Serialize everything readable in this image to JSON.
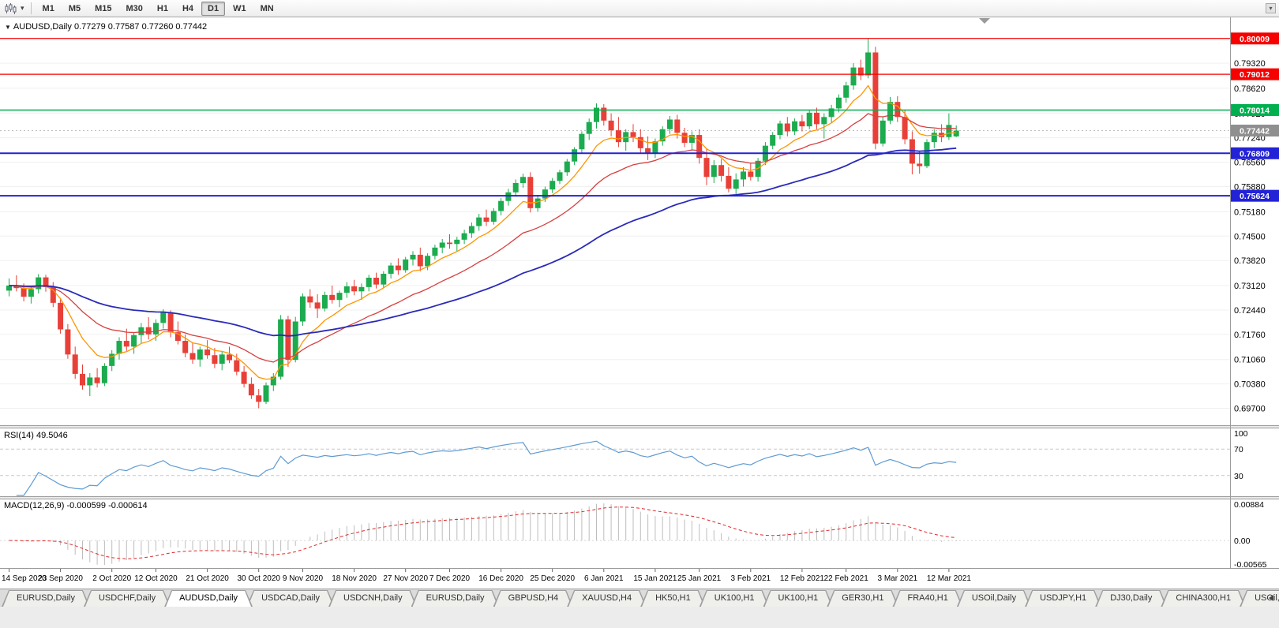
{
  "toolbar": {
    "timeframes": [
      "M1",
      "M5",
      "M15",
      "M30",
      "H1",
      "H4",
      "D1",
      "W1",
      "MN"
    ],
    "active_timeframe": "D1"
  },
  "chart_title": {
    "symbol": "AUDUSD,Daily",
    "ohlc": "0.77279 0.77587 0.77260 0.77442"
  },
  "chart_data": {
    "type": "candlestick",
    "symbol": "AUDUSD",
    "period": "Daily",
    "price_axis_labels": [
      "0.79320",
      "0.78620",
      "0.77920",
      "0.77240",
      "0.76560",
      "0.75880",
      "0.75180",
      "0.74500",
      "0.73820",
      "0.73120",
      "0.72440",
      "0.71760",
      "0.71060",
      "0.70380",
      "0.69700"
    ],
    "x_labels": [
      [
        0,
        "14 Sep 2020"
      ],
      [
        7,
        "23 Sep 2020"
      ],
      [
        14,
        "2 Oct 2020"
      ],
      [
        20,
        "12 Oct 2020"
      ],
      [
        27,
        "21 Oct 2020"
      ],
      [
        34,
        "30 Oct 2020"
      ],
      [
        40,
        "9 Nov 2020"
      ],
      [
        47,
        "18 Nov 2020"
      ],
      [
        54,
        "27 Nov 2020"
      ],
      [
        60,
        "7 Dec 2020"
      ],
      [
        67,
        "16 Dec 2020"
      ],
      [
        74,
        "25 Dec 2020"
      ],
      [
        81,
        "6 Jan 2021"
      ],
      [
        88,
        "15 Jan 2021"
      ],
      [
        94,
        "25 Jan 2021"
      ],
      [
        101,
        "3 Feb 2021"
      ],
      [
        108,
        "12 Feb 2021"
      ],
      [
        114,
        "22 Feb 2021"
      ],
      [
        121,
        "3 Mar 2021"
      ],
      [
        128,
        "12 Mar 2021"
      ]
    ],
    "hlines": [
      {
        "price": 0.80009,
        "label": "0.80009",
        "color": "#f60000",
        "width": 1.3
      },
      {
        "price": 0.79012,
        "label": "0.79012",
        "color": "#f60000",
        "width": 1.3
      },
      {
        "price": 0.78014,
        "label": "0.78014",
        "color": "#00b050",
        "width": 1.6
      },
      {
        "price": 0.76809,
        "label": "0.76809",
        "color": "#2222d6",
        "width": 2
      },
      {
        "price": 0.75624,
        "label": "0.75624",
        "color": "#2222d6",
        "width": 2
      }
    ],
    "current_price": {
      "value": 0.77442,
      "label": "0.77442",
      "color": "#8f8f8f"
    },
    "colors": {
      "bull": "#1cab4f",
      "bear": "#e84038",
      "ma_fast": "#ff9500",
      "ma_mid": "#d74040",
      "ma_slow": "#2a2ab8",
      "rsi": "#5e9bd3",
      "macd_hist": "#bdbdbd",
      "macd_signal": "#e02828"
    },
    "candles": [
      [
        0.7298,
        0.7332,
        0.7282,
        0.7312
      ],
      [
        0.7312,
        0.7341,
        0.7296,
        0.7305
      ],
      [
        0.7305,
        0.7318,
        0.7268,
        0.7281
      ],
      [
        0.7281,
        0.7312,
        0.7262,
        0.7302
      ],
      [
        0.7302,
        0.7344,
        0.729,
        0.7335
      ],
      [
        0.7335,
        0.7342,
        0.7295,
        0.7308
      ],
      [
        0.7308,
        0.7322,
        0.7252,
        0.7264
      ],
      [
        0.7264,
        0.7278,
        0.7178,
        0.719
      ],
      [
        0.719,
        0.7205,
        0.7108,
        0.712
      ],
      [
        0.712,
        0.7142,
        0.7052,
        0.7066
      ],
      [
        0.7066,
        0.7092,
        0.7022,
        0.7034
      ],
      [
        0.7034,
        0.7068,
        0.7004,
        0.7056
      ],
      [
        0.7056,
        0.7082,
        0.7028,
        0.704
      ],
      [
        0.704,
        0.7096,
        0.7032,
        0.7088
      ],
      [
        0.7088,
        0.7132,
        0.7074,
        0.7122
      ],
      [
        0.7122,
        0.7168,
        0.7106,
        0.7158
      ],
      [
        0.7158,
        0.7192,
        0.713,
        0.7142
      ],
      [
        0.7142,
        0.7182,
        0.7122,
        0.7174
      ],
      [
        0.7174,
        0.7208,
        0.7152,
        0.7196
      ],
      [
        0.7196,
        0.7224,
        0.7162,
        0.7176
      ],
      [
        0.7176,
        0.7218,
        0.7158,
        0.7208
      ],
      [
        0.7208,
        0.7246,
        0.7192,
        0.7238
      ],
      [
        0.7238,
        0.7243,
        0.7168,
        0.7182
      ],
      [
        0.7182,
        0.7212,
        0.7148,
        0.7158
      ],
      [
        0.7158,
        0.7176,
        0.7112,
        0.7124
      ],
      [
        0.7124,
        0.7152,
        0.7094,
        0.7106
      ],
      [
        0.7106,
        0.7142,
        0.7086,
        0.7134
      ],
      [
        0.7134,
        0.716,
        0.7108,
        0.7118
      ],
      [
        0.7118,
        0.7138,
        0.7082,
        0.7094
      ],
      [
        0.7094,
        0.7128,
        0.7076,
        0.712
      ],
      [
        0.712,
        0.7142,
        0.7096,
        0.7104
      ],
      [
        0.7104,
        0.7122,
        0.7062,
        0.7072
      ],
      [
        0.7072,
        0.7088,
        0.7028,
        0.7038
      ],
      [
        0.7038,
        0.7056,
        0.6996,
        0.7006
      ],
      [
        0.7006,
        0.7024,
        0.697,
        0.6988
      ],
      [
        0.6988,
        0.7042,
        0.6982,
        0.7034
      ],
      [
        0.7034,
        0.7068,
        0.7018,
        0.7058
      ],
      [
        0.7058,
        0.723,
        0.705,
        0.7218
      ],
      [
        0.7218,
        0.7228,
        0.7085,
        0.7105
      ],
      [
        0.7105,
        0.7225,
        0.7098,
        0.7212
      ],
      [
        0.7212,
        0.729,
        0.72,
        0.7282
      ],
      [
        0.7282,
        0.7302,
        0.725,
        0.7265
      ],
      [
        0.7265,
        0.7288,
        0.7222,
        0.7248
      ],
      [
        0.7248,
        0.7295,
        0.724,
        0.7286
      ],
      [
        0.7286,
        0.7312,
        0.7262,
        0.7272
      ],
      [
        0.7272,
        0.7298,
        0.7252,
        0.7292
      ],
      [
        0.7292,
        0.7322,
        0.7278,
        0.731
      ],
      [
        0.731,
        0.7328,
        0.7285,
        0.7296
      ],
      [
        0.7296,
        0.7318,
        0.7272,
        0.7308
      ],
      [
        0.7308,
        0.7342,
        0.7296,
        0.7334
      ],
      [
        0.7334,
        0.7348,
        0.7304,
        0.7315
      ],
      [
        0.7315,
        0.7352,
        0.7306,
        0.7345
      ],
      [
        0.7345,
        0.7376,
        0.7332,
        0.7368
      ],
      [
        0.7368,
        0.7388,
        0.7342,
        0.7355
      ],
      [
        0.7355,
        0.7392,
        0.7348,
        0.7385
      ],
      [
        0.7385,
        0.7408,
        0.7368,
        0.7398
      ],
      [
        0.7398,
        0.7418,
        0.7352,
        0.7366
      ],
      [
        0.7366,
        0.7402,
        0.7355,
        0.7395
      ],
      [
        0.7395,
        0.7426,
        0.7385,
        0.7418
      ],
      [
        0.7418,
        0.7442,
        0.7402,
        0.7432
      ],
      [
        0.7432,
        0.7455,
        0.7415,
        0.7428
      ],
      [
        0.7428,
        0.7448,
        0.7406,
        0.744
      ],
      [
        0.744,
        0.7468,
        0.7428,
        0.7458
      ],
      [
        0.7458,
        0.7488,
        0.7445,
        0.7478
      ],
      [
        0.7478,
        0.7512,
        0.7465,
        0.7502
      ],
      [
        0.7502,
        0.7524,
        0.7478,
        0.749
      ],
      [
        0.749,
        0.7528,
        0.7482,
        0.752
      ],
      [
        0.752,
        0.7556,
        0.7508,
        0.7548
      ],
      [
        0.7548,
        0.7582,
        0.7535,
        0.7572
      ],
      [
        0.7572,
        0.7608,
        0.756,
        0.7598
      ],
      [
        0.7598,
        0.7624,
        0.7585,
        0.7615
      ],
      [
        0.7615,
        0.7628,
        0.7516,
        0.7528
      ],
      [
        0.7528,
        0.7565,
        0.7518,
        0.7555
      ],
      [
        0.7555,
        0.7588,
        0.7545,
        0.758
      ],
      [
        0.758,
        0.7612,
        0.757,
        0.7604
      ],
      [
        0.7604,
        0.7635,
        0.7595,
        0.7628
      ],
      [
        0.7628,
        0.7665,
        0.7618,
        0.7658
      ],
      [
        0.7658,
        0.7698,
        0.7648,
        0.7692
      ],
      [
        0.7692,
        0.7742,
        0.768,
        0.7735
      ],
      [
        0.7735,
        0.7778,
        0.7718,
        0.7768
      ],
      [
        0.7768,
        0.782,
        0.775,
        0.7808
      ],
      [
        0.7808,
        0.7818,
        0.7758,
        0.7772
      ],
      [
        0.7772,
        0.7792,
        0.7728,
        0.7745
      ],
      [
        0.7745,
        0.7782,
        0.7698,
        0.7712
      ],
      [
        0.7712,
        0.7748,
        0.7688,
        0.774
      ],
      [
        0.774,
        0.7762,
        0.7712,
        0.7726
      ],
      [
        0.7726,
        0.7748,
        0.7682,
        0.7695
      ],
      [
        0.7695,
        0.7728,
        0.7662,
        0.7682
      ],
      [
        0.7682,
        0.7722,
        0.7668,
        0.7714
      ],
      [
        0.7714,
        0.7756,
        0.7702,
        0.7748
      ],
      [
        0.7748,
        0.7785,
        0.7735,
        0.7775
      ],
      [
        0.7775,
        0.7788,
        0.7722,
        0.7738
      ],
      [
        0.7738,
        0.7752,
        0.7698,
        0.771
      ],
      [
        0.771,
        0.7742,
        0.7688,
        0.7732
      ],
      [
        0.7732,
        0.7748,
        0.7652,
        0.7668
      ],
      [
        0.7668,
        0.7695,
        0.7592,
        0.7615
      ],
      [
        0.7615,
        0.7662,
        0.7598,
        0.7648
      ],
      [
        0.7648,
        0.7665,
        0.7602,
        0.7618
      ],
      [
        0.7618,
        0.7642,
        0.7572,
        0.7582
      ],
      [
        0.7582,
        0.7625,
        0.7566,
        0.7608
      ],
      [
        0.7608,
        0.7642,
        0.7588,
        0.763
      ],
      [
        0.763,
        0.7652,
        0.7605,
        0.7615
      ],
      [
        0.7615,
        0.7668,
        0.7602,
        0.766
      ],
      [
        0.766,
        0.7712,
        0.7648,
        0.7702
      ],
      [
        0.7702,
        0.774,
        0.7692,
        0.7732
      ],
      [
        0.7732,
        0.7772,
        0.772,
        0.7764
      ],
      [
        0.7764,
        0.7782,
        0.7728,
        0.7742
      ],
      [
        0.7742,
        0.7778,
        0.7732,
        0.777
      ],
      [
        0.777,
        0.7788,
        0.7742,
        0.7756
      ],
      [
        0.7756,
        0.7802,
        0.7748,
        0.7794
      ],
      [
        0.7794,
        0.7808,
        0.7748,
        0.7762
      ],
      [
        0.7762,
        0.7792,
        0.7722,
        0.7782
      ],
      [
        0.7782,
        0.7816,
        0.7765,
        0.7806
      ],
      [
        0.7806,
        0.7845,
        0.7795,
        0.7836
      ],
      [
        0.7836,
        0.788,
        0.7822,
        0.787
      ],
      [
        0.787,
        0.7932,
        0.7858,
        0.792
      ],
      [
        0.792,
        0.7942,
        0.7885,
        0.7898
      ],
      [
        0.7898,
        0.8001,
        0.789,
        0.7962
      ],
      [
        0.7962,
        0.7978,
        0.7692,
        0.7708
      ],
      [
        0.7708,
        0.7782,
        0.77,
        0.7772
      ],
      [
        0.7772,
        0.7838,
        0.7762,
        0.7824
      ],
      [
        0.7824,
        0.784,
        0.7768,
        0.7782
      ],
      [
        0.7782,
        0.7802,
        0.7706,
        0.772
      ],
      [
        0.772,
        0.7742,
        0.7622,
        0.7652
      ],
      [
        0.7652,
        0.7688,
        0.7624,
        0.7645
      ],
      [
        0.7645,
        0.772,
        0.764,
        0.7712
      ],
      [
        0.7712,
        0.7748,
        0.7695,
        0.7738
      ],
      [
        0.7738,
        0.7762,
        0.7712,
        0.7726
      ],
      [
        0.7726,
        0.7792,
        0.7718,
        0.776
      ],
      [
        0.77279,
        0.77587,
        0.7726,
        0.77442
      ]
    ],
    "indicators": {
      "rsi": {
        "label": "RSI(14) 49.5046",
        "period": 14,
        "levels": [
          "100",
          "70",
          "30"
        ]
      },
      "macd": {
        "label": "MACD(12,26,9) -0.000599 -0.000614",
        "axis_labels": [
          "0.00884",
          "0.00",
          "-0.00565"
        ]
      }
    }
  },
  "tabs": {
    "active_index": 2,
    "items": [
      "EURUSD,Daily",
      "USDCHF,Daily",
      "AUDUSD,Daily",
      "USDCAD,Daily",
      "USDCNH,Daily",
      "EURUSD,Daily",
      "GBPUSD,H4",
      "XAUUSD,H4",
      "HK50,H1",
      "UK100,H1",
      "UK100,H1",
      "GER30,H1",
      "FRA40,H1",
      "USOil,Daily",
      "USDJPY,H1",
      "DJ30,Daily",
      "CHINA300,H1",
      "USOil,"
    ]
  }
}
